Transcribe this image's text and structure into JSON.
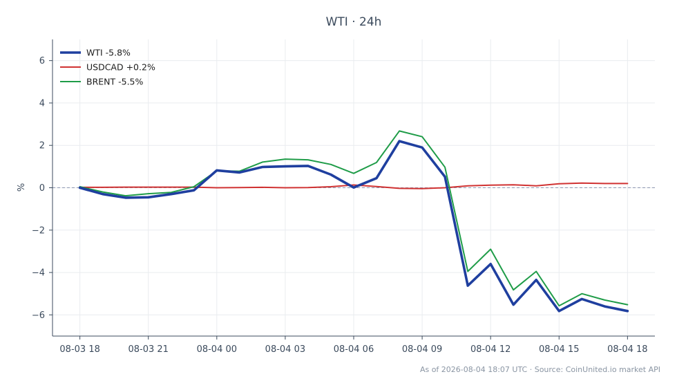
{
  "chart_data": {
    "type": "line",
    "title": "WTI · 24h",
    "xlabel": "",
    "ylabel": "%",
    "ylim": [
      -7,
      7
    ],
    "yticks": [
      6,
      4,
      2,
      0,
      -2,
      -4,
      -6
    ],
    "ytick_labels": [
      "6",
      "4",
      "2",
      "0",
      "−2",
      "−4",
      "−6"
    ],
    "xlim": [
      -1.2,
      25.2
    ],
    "xtick_positions": [
      0,
      3,
      6,
      9,
      12,
      15,
      18,
      21,
      24
    ],
    "xtick_labels": [
      "08-03 18",
      "08-03 21",
      "08-04 00",
      "08-04 03",
      "08-04 06",
      "08-04 09",
      "08-04 12",
      "08-04 15",
      "08-04 18"
    ],
    "x": [
      0,
      1,
      2,
      3,
      4,
      5,
      6,
      7,
      8,
      9,
      10,
      11,
      12,
      13,
      14,
      15,
      16,
      17,
      18,
      19,
      20,
      21,
      22,
      23,
      24
    ],
    "x_labels": [
      "08-03 18:00",
      "08-03 19:00",
      "08-03 20:00",
      "08-03 21:00",
      "08-03 22:00",
      "08-03 23:00",
      "08-04 00:00",
      "08-04 01:00",
      "08-04 02:00",
      "08-04 03:00",
      "08-04 04:00",
      "08-04 05:00",
      "08-04 06:00",
      "08-04 07:00",
      "08-04 08:00",
      "08-04 09:00",
      "08-04 10:00",
      "08-04 11:00",
      "08-04 12:00",
      "08-04 13:00",
      "08-04 14:00",
      "08-04 15:00",
      "08-04 16:00",
      "08-04 17:00",
      "08-04 18:00"
    ],
    "zero_line": true,
    "grid": true,
    "legend_position": "top-left",
    "series": [
      {
        "name": "WTI -5.8%",
        "color": "#1f3f9f",
        "width": 3.6,
        "values": [
          0.0,
          -0.3,
          -0.47,
          -0.45,
          -0.3,
          -0.12,
          0.82,
          0.72,
          0.98,
          1.01,
          1.03,
          0.62,
          0.01,
          0.45,
          2.2,
          1.9,
          0.52,
          -4.62,
          -3.6,
          -5.52,
          -4.35,
          -5.82,
          -5.25,
          -5.6,
          -5.82
        ]
      },
      {
        "name": "USDCAD +0.2%",
        "color": "#d03232",
        "width": 2,
        "values": [
          0.02,
          0.02,
          0.03,
          0.03,
          0.03,
          0.03,
          0.0,
          0.01,
          0.02,
          0.0,
          0.01,
          0.05,
          0.13,
          0.06,
          -0.03,
          -0.04,
          0.0,
          0.09,
          0.12,
          0.14,
          0.09,
          0.19,
          0.22,
          0.2,
          0.2
        ]
      },
      {
        "name": "BRENT -5.5%",
        "color": "#1f9c48",
        "width": 2,
        "values": [
          0.05,
          -0.2,
          -0.38,
          -0.28,
          -0.22,
          0.05,
          0.8,
          0.78,
          1.21,
          1.35,
          1.32,
          1.1,
          0.68,
          1.19,
          2.68,
          2.41,
          0.97,
          -3.95,
          -2.9,
          -4.82,
          -3.95,
          -5.57,
          -5.0,
          -5.3,
          -5.52
        ]
      }
    ],
    "footer": "As of 2026-08-04 18:07 UTC · Source: CoinUnited.io market API"
  }
}
